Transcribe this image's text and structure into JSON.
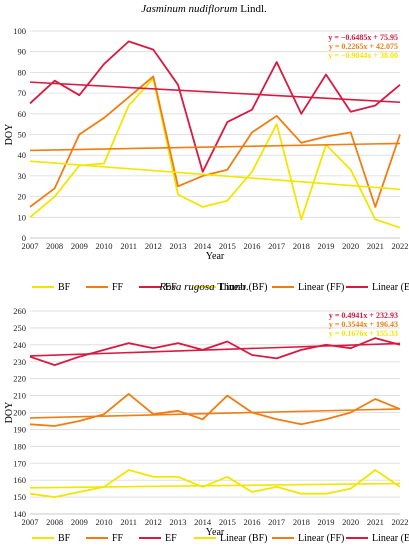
{
  "chart_data": [
    {
      "type": "line",
      "title": "Jasminum nudiflorum",
      "title_author": "Lindl.",
      "xlabel": "Year",
      "ylabel": "DOY",
      "ylim": [
        0,
        100
      ],
      "yticks": [
        0,
        10,
        20,
        30,
        40,
        50,
        60,
        70,
        80,
        90,
        100
      ],
      "grid": "horizontal",
      "x": [
        2007,
        2008,
        2009,
        2010,
        2011,
        2012,
        2013,
        2014,
        2015,
        2016,
        2017,
        2018,
        2019,
        2020,
        2021,
        2022
      ],
      "series": [
        {
          "name": "BF",
          "color": "#f2e600",
          "values": [
            10,
            20,
            35,
            36,
            64,
            77,
            21,
            15,
            18,
            32,
            55,
            9,
            45,
            33,
            9,
            5
          ]
        },
        {
          "name": "FF",
          "color": "#f07d12",
          "values": [
            15,
            24,
            50,
            58,
            68,
            78,
            25,
            30,
            33,
            51,
            59,
            46,
            49,
            51,
            15,
            50
          ]
        },
        {
          "name": "EF",
          "color": "#d81a40",
          "values": [
            65,
            76,
            69,
            84,
            95,
            91,
            74,
            32,
            56,
            62,
            85,
            60,
            79,
            61,
            64,
            74
          ]
        }
      ],
      "trendlines": [
        {
          "name": "Linear (BF)",
          "color": "#f2e600",
          "slope": -0.9044,
          "intercept": 38.0,
          "label": "y = −0.9044x + 38.00"
        },
        {
          "name": "Linear (FF)",
          "color": "#f07d12",
          "slope": 0.2265,
          "intercept": 42.075,
          "label": "y = 0.2265x + 42.075"
        },
        {
          "name": "Linear (EF)",
          "color": "#d81a40",
          "slope": -0.6485,
          "intercept": 75.95,
          "label": "y = −0.6485x + 75.95"
        }
      ],
      "equation_order": [
        "Linear (EF)",
        "Linear (FF)",
        "Linear (BF)"
      ]
    },
    {
      "type": "line",
      "title": "Rosa rugosa",
      "title_author": "Thunb.",
      "xlabel": "Year",
      "ylabel": "DOY",
      "ylim": [
        140,
        260
      ],
      "yticks": [
        140,
        150,
        160,
        170,
        180,
        190,
        200,
        210,
        220,
        230,
        240,
        250,
        260
      ],
      "grid": "horizontal",
      "x": [
        2007,
        2008,
        2009,
        2010,
        2011,
        2012,
        2013,
        2014,
        2015,
        2016,
        2017,
        2018,
        2019,
        2020,
        2021,
        2022
      ],
      "series": [
        {
          "name": "BF",
          "color": "#f2e600",
          "values": [
            152,
            150,
            153,
            156,
            166,
            162,
            162,
            156,
            162,
            153,
            156,
            152,
            152,
            155,
            166,
            156
          ]
        },
        {
          "name": "FF",
          "color": "#f07d12",
          "values": [
            193,
            192,
            195,
            199,
            211,
            199,
            201,
            196,
            210,
            200,
            196,
            193,
            196,
            200,
            208,
            202
          ]
        },
        {
          "name": "EF",
          "color": "#d81a40",
          "values": [
            233,
            228,
            233,
            237,
            241,
            238,
            241,
            237,
            242,
            234,
            232,
            237,
            240,
            238,
            244,
            240
          ]
        }
      ],
      "trendlines": [
        {
          "name": "Linear (BF)",
          "color": "#f2e600",
          "slope": 0.1676,
          "intercept": 155.33,
          "label": "y = 0.1676x + 155.33"
        },
        {
          "name": "Linear (FF)",
          "color": "#f07d12",
          "slope": 0.3544,
          "intercept": 196.43,
          "label": "y = 0.3544x + 196.43"
        },
        {
          "name": "Linear (EF)",
          "color": "#d81a40",
          "slope": 0.4941,
          "intercept": 232.93,
          "label": "y = 0.4941x + 232.93"
        }
      ],
      "equation_order": [
        "Linear (EF)",
        "Linear (FF)",
        "Linear (BF)"
      ]
    }
  ],
  "legend": {
    "placement": "bottom",
    "items": [
      {
        "label": "BF",
        "color": "#f2e600"
      },
      {
        "label": "FF",
        "color": "#f07d12"
      },
      {
        "label": "EF",
        "color": "#d81a40"
      },
      {
        "label": "Linear (BF)",
        "color": "#f2e600"
      },
      {
        "label": "Linear (FF)",
        "color": "#f07d12"
      },
      {
        "label": "Linear (EF)",
        "color": "#d81a40"
      }
    ]
  }
}
